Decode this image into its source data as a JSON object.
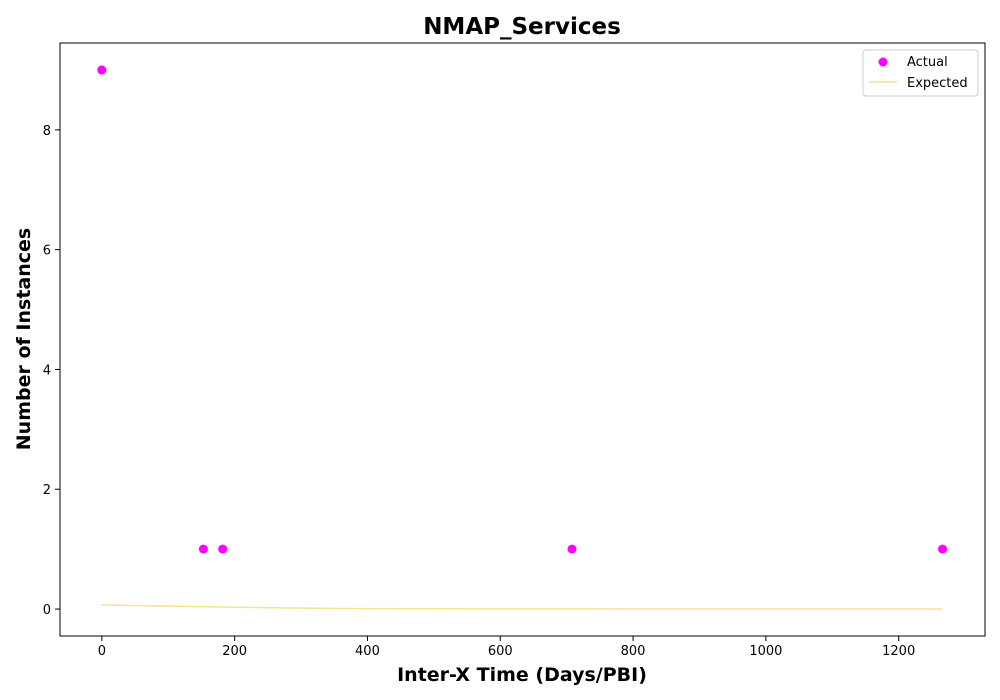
{
  "chart_data": {
    "type": "scatter",
    "title": "NMAP_Services",
    "xlabel": "Inter-X Time (Days/PBI)",
    "ylabel": "Number of Instances",
    "xlim": [
      -63,
      1330
    ],
    "ylim": [
      -0.45,
      9.45
    ],
    "xticks": [
      0,
      200,
      400,
      600,
      800,
      1000,
      1200
    ],
    "yticks": [
      0,
      2,
      4,
      6,
      8
    ],
    "grid": false,
    "legend_position": "top-right",
    "series": [
      {
        "name": "Actual",
        "kind": "scatter",
        "color": "#ff00ff",
        "x": [
          0,
          153,
          182,
          708,
          1266
        ],
        "y": [
          9,
          1,
          1,
          1,
          1
        ]
      },
      {
        "name": "Expected",
        "kind": "line",
        "color": "#f0e68c",
        "x": [
          0,
          100,
          200,
          300,
          400,
          500,
          600,
          700,
          800,
          900,
          1000,
          1100,
          1200,
          1266
        ],
        "y": [
          0.07,
          0.05,
          0.03,
          0.015,
          0.008,
          0.005,
          0.003,
          0.002,
          0.0012,
          0.0008,
          0.0005,
          0.0003,
          0.0002,
          0.0001
        ]
      }
    ]
  }
}
